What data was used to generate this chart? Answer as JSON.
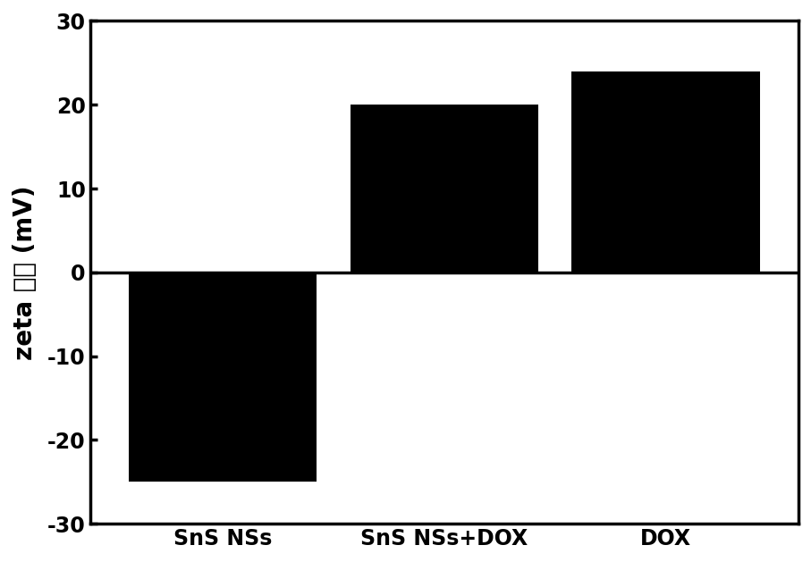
{
  "categories": [
    "SnS NSs",
    "SnS NSs+DOX",
    "DOX"
  ],
  "values": [
    -25,
    20,
    24
  ],
  "bar_color": "#000000",
  "bar_width": 0.85,
  "ylim": [
    -30,
    30
  ],
  "yticks": [
    -30,
    -20,
    -10,
    0,
    10,
    20,
    30
  ],
  "ylabel": "zeta 电位 (mV)",
  "background_color": "#ffffff",
  "tick_fontsize": 17,
  "label_fontsize": 20,
  "spine_linewidth": 2.5,
  "tick_linewidth": 2.5,
  "xlim_left": -0.6,
  "xlim_right": 2.6
}
